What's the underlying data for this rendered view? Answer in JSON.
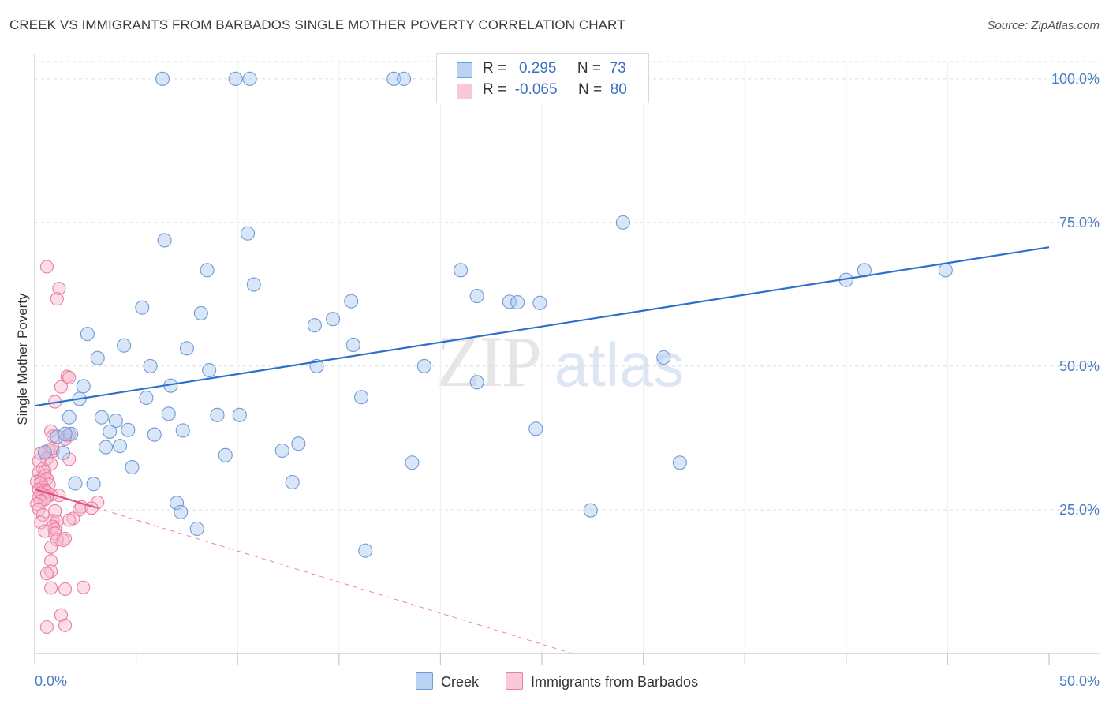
{
  "title": "CREEK VS IMMIGRANTS FROM BARBADOS SINGLE MOTHER POVERTY CORRELATION CHART",
  "source": "Source: ZipAtlas.com",
  "watermark": {
    "zip": "ZIP",
    "atlas": "atlas"
  },
  "legend": {
    "rows": [
      {
        "r_label": "R =",
        "r_value": "0.295",
        "n_label": "N =",
        "n_value": "73"
      },
      {
        "r_label": "R =",
        "r_value": "-0.065",
        "n_label": "N =",
        "n_value": "80"
      }
    ]
  },
  "bottom_legend": {
    "creek": "Creek",
    "barbados": "Immigrants from Barbados"
  },
  "colors": {
    "creek_fill": "#a9c8ef",
    "creek_stroke": "#6f9bd6",
    "creek_line": "#2d6fcf",
    "barbados_fill": "#f7b9cc",
    "barbados_stroke": "#ea7ea0",
    "barbados_line": "#e0507d",
    "grid": "#dcdcdc",
    "axis_text": "#4a7cc6"
  },
  "chart_data": {
    "type": "scatter",
    "title": "CREEK VS IMMIGRANTS FROM BARBADOS SINGLE MOTHER POVERTY CORRELATION CHART",
    "xlabel": "",
    "ylabel": "Single Mother Poverty",
    "xlim": [
      0,
      50
    ],
    "ylim": [
      0,
      103
    ],
    "x_tick_labels": [
      "0.0%",
      "50.0%"
    ],
    "y_ticks": [
      25,
      50,
      75,
      100
    ],
    "y_tick_labels": [
      "25.0%",
      "50.0%",
      "75.0%",
      "100.0%"
    ],
    "series": [
      {
        "name": "Creek",
        "R": 0.295,
        "N": 73,
        "trend": {
          "x0": 0,
          "y0": 43.1,
          "x1": 50,
          "y1": 70.7
        },
        "points": [
          [
            6.3,
            100
          ],
          [
            9.9,
            100
          ],
          [
            10.6,
            100
          ],
          [
            17.7,
            100
          ],
          [
            18.2,
            100
          ],
          [
            29.0,
            75.0
          ],
          [
            10.5,
            73.1
          ],
          [
            6.4,
            71.9
          ],
          [
            8.5,
            66.7
          ],
          [
            21.0,
            66.7
          ],
          [
            40.0,
            65.0
          ],
          [
            40.9,
            66.7
          ],
          [
            44.9,
            66.7
          ],
          [
            10.8,
            64.2
          ],
          [
            21.8,
            62.2
          ],
          [
            23.4,
            61.2
          ],
          [
            23.8,
            61.1
          ],
          [
            24.9,
            61.0
          ],
          [
            15.6,
            61.3
          ],
          [
            5.3,
            60.2
          ],
          [
            8.2,
            59.2
          ],
          [
            14.7,
            58.2
          ],
          [
            13.8,
            57.1
          ],
          [
            2.6,
            55.6
          ],
          [
            4.4,
            53.6
          ],
          [
            7.5,
            53.1
          ],
          [
            3.1,
            51.4
          ],
          [
            31.0,
            51.5
          ],
          [
            15.7,
            53.7
          ],
          [
            13.9,
            50.0
          ],
          [
            19.2,
            50.0
          ],
          [
            5.7,
            50.0
          ],
          [
            8.6,
            49.3
          ],
          [
            6.7,
            46.6
          ],
          [
            2.4,
            46.5
          ],
          [
            21.8,
            47.2
          ],
          [
            2.2,
            44.3
          ],
          [
            5.5,
            44.5
          ],
          [
            16.1,
            44.6
          ],
          [
            1.7,
            41.1
          ],
          [
            3.3,
            41.1
          ],
          [
            6.6,
            41.7
          ],
          [
            9.0,
            41.5
          ],
          [
            10.1,
            41.5
          ],
          [
            4.0,
            40.5
          ],
          [
            3.7,
            38.6
          ],
          [
            1.8,
            38.2
          ],
          [
            4.6,
            38.9
          ],
          [
            7.3,
            38.8
          ],
          [
            5.9,
            38.1
          ],
          [
            24.7,
            39.1
          ],
          [
            1.1,
            37.7
          ],
          [
            1.5,
            38.2
          ],
          [
            3.5,
            35.9
          ],
          [
            4.2,
            36.1
          ],
          [
            13.0,
            36.5
          ],
          [
            12.2,
            35.3
          ],
          [
            1.4,
            34.9
          ],
          [
            9.4,
            34.5
          ],
          [
            0.5,
            35.0
          ],
          [
            4.8,
            32.4
          ],
          [
            18.6,
            33.2
          ],
          [
            31.8,
            33.2
          ],
          [
            2.0,
            29.6
          ],
          [
            2.9,
            29.5
          ],
          [
            12.7,
            29.8
          ],
          [
            7.0,
            26.2
          ],
          [
            7.2,
            24.6
          ],
          [
            27.4,
            24.9
          ],
          [
            8.0,
            21.7
          ],
          [
            16.3,
            17.9
          ]
        ]
      },
      {
        "name": "Immigrants from Barbados",
        "R": -0.065,
        "N": 80,
        "trend": {
          "x0": 0,
          "y0": 28.6,
          "x1": 3.0,
          "y1": 25.4
        },
        "trend_extension": {
          "x0": 3.0,
          "y0": 25.4,
          "x1": 26.5,
          "y1": 0
        },
        "points": [
          [
            0.6,
            67.3
          ],
          [
            1.2,
            63.5
          ],
          [
            1.1,
            61.7
          ],
          [
            1.6,
            48.2
          ],
          [
            1.7,
            48.0
          ],
          [
            1.3,
            46.4
          ],
          [
            1.0,
            43.8
          ],
          [
            0.8,
            38.7
          ],
          [
            0.9,
            37.8
          ],
          [
            1.6,
            37.9
          ],
          [
            1.7,
            38.1
          ],
          [
            1.5,
            37.3
          ],
          [
            0.5,
            35.0
          ],
          [
            0.9,
            35.2
          ],
          [
            0.7,
            35.4
          ],
          [
            0.9,
            35.7
          ],
          [
            0.3,
            34.8
          ],
          [
            0.6,
            33.9
          ],
          [
            1.7,
            33.8
          ],
          [
            0.2,
            33.5
          ],
          [
            0.8,
            33.0
          ],
          [
            0.4,
            32.1
          ],
          [
            0.5,
            31.7
          ],
          [
            0.2,
            31.5
          ],
          [
            0.5,
            30.9
          ],
          [
            0.3,
            30.2
          ],
          [
            0.6,
            30.4
          ],
          [
            0.1,
            29.9
          ],
          [
            0.3,
            29.6
          ],
          [
            0.7,
            29.4
          ],
          [
            0.4,
            28.9
          ],
          [
            0.2,
            28.5
          ],
          [
            0.5,
            28.4
          ],
          [
            0.6,
            28.1
          ],
          [
            0.3,
            27.9
          ],
          [
            0.4,
            27.6
          ],
          [
            0.8,
            27.6
          ],
          [
            1.2,
            27.5
          ],
          [
            0.6,
            27.3
          ],
          [
            0.2,
            27.1
          ],
          [
            0.5,
            26.8
          ],
          [
            0.3,
            26.5
          ],
          [
            0.1,
            26.0
          ],
          [
            3.1,
            26.3
          ],
          [
            2.3,
            25.5
          ],
          [
            2.8,
            25.3
          ],
          [
            0.2,
            25.1
          ],
          [
            1.0,
            24.8
          ],
          [
            2.2,
            25.0
          ],
          [
            0.4,
            24.1
          ],
          [
            1.9,
            23.5
          ],
          [
            1.7,
            23.2
          ],
          [
            0.9,
            23.1
          ],
          [
            1.1,
            23.0
          ],
          [
            0.3,
            22.8
          ],
          [
            0.9,
            22.1
          ],
          [
            1.0,
            21.6
          ],
          [
            0.5,
            21.3
          ],
          [
            1.0,
            20.9
          ],
          [
            1.5,
            20.0
          ],
          [
            1.1,
            19.8
          ],
          [
            1.4,
            19.7
          ],
          [
            0.8,
            18.5
          ],
          [
            0.8,
            16.1
          ],
          [
            0.8,
            14.3
          ],
          [
            0.6,
            13.9
          ],
          [
            0.8,
            11.4
          ],
          [
            1.5,
            11.2
          ],
          [
            2.4,
            11.5
          ],
          [
            1.3,
            6.7
          ],
          [
            0.6,
            4.6
          ],
          [
            1.5,
            4.9
          ]
        ]
      }
    ]
  }
}
